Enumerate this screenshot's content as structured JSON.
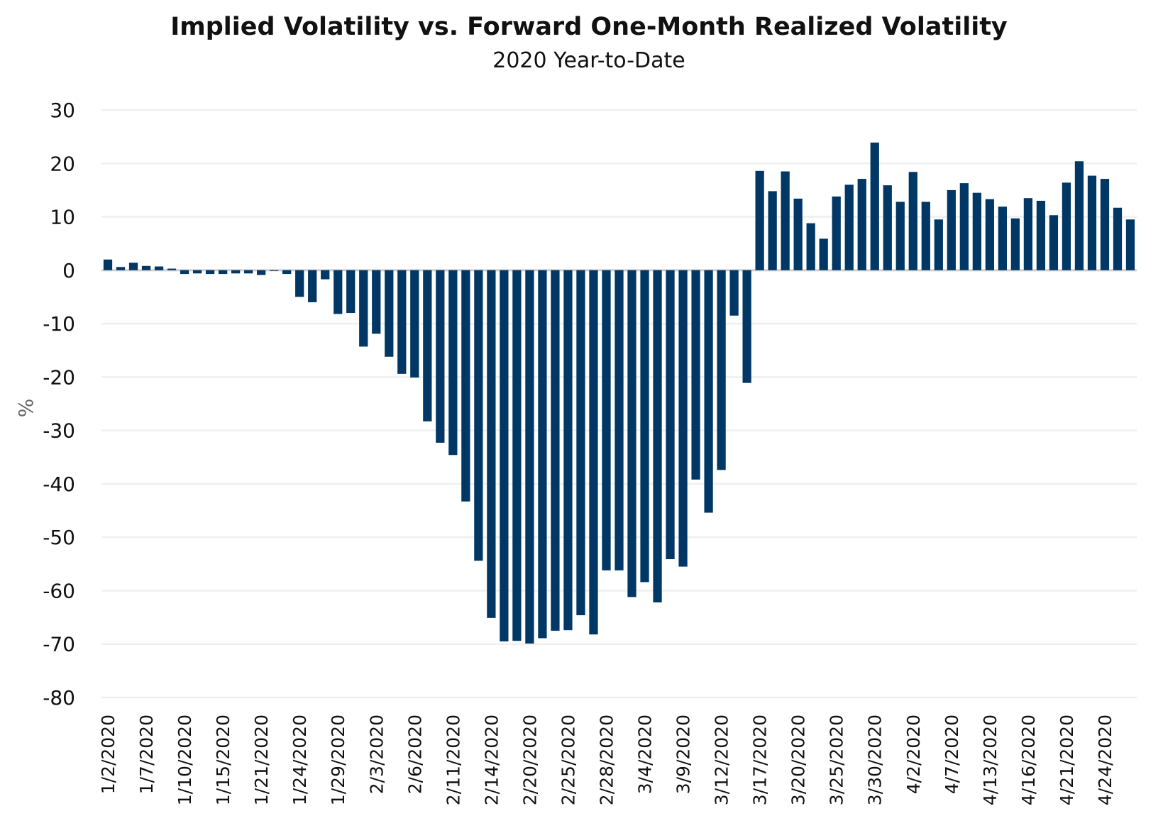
{
  "chart_data": {
    "type": "bar",
    "title": "Implied Volatility vs. Forward One-Month Realized Volatility",
    "subtitle": "2020 Year-to-Date",
    "xlabel": "",
    "ylabel": "%",
    "ylim": [
      -80,
      30
    ],
    "yticks": [
      30,
      20,
      10,
      0,
      -10,
      -20,
      -30,
      -40,
      -50,
      -60,
      -70,
      -80
    ],
    "grid": true,
    "bar_color": "#003764",
    "categories": [
      "1/2/2020",
      "1/3/2020",
      "1/6/2020",
      "1/7/2020",
      "1/8/2020",
      "1/9/2020",
      "1/10/2020",
      "1/13/2020",
      "1/14/2020",
      "1/15/2020",
      "1/16/2020",
      "1/17/2020",
      "1/21/2020",
      "1/22/2020",
      "1/23/2020",
      "1/24/2020",
      "1/27/2020",
      "1/28/2020",
      "1/29/2020",
      "1/30/2020",
      "1/31/2020",
      "2/3/2020",
      "2/4/2020",
      "2/5/2020",
      "2/6/2020",
      "2/7/2020",
      "2/10/2020",
      "2/11/2020",
      "2/12/2020",
      "2/13/2020",
      "2/14/2020",
      "2/18/2020",
      "2/19/2020",
      "2/20/2020",
      "2/21/2020",
      "2/24/2020",
      "2/25/2020",
      "2/26/2020",
      "2/27/2020",
      "2/28/2020",
      "3/2/2020",
      "3/3/2020",
      "3/4/2020",
      "3/5/2020",
      "3/6/2020",
      "3/9/2020",
      "3/10/2020",
      "3/11/2020",
      "3/12/2020",
      "3/13/2020",
      "3/16/2020",
      "3/17/2020",
      "3/18/2020",
      "3/19/2020",
      "3/20/2020",
      "3/23/2020",
      "3/24/2020",
      "3/25/2020",
      "3/26/2020",
      "3/27/2020",
      "3/30/2020",
      "3/31/2020",
      "4/1/2020",
      "4/2/2020",
      "4/3/2020",
      "4/6/2020",
      "4/7/2020",
      "4/8/2020",
      "4/9/2020",
      "4/13/2020",
      "4/14/2020",
      "4/15/2020",
      "4/16/2020",
      "4/17/2020",
      "4/20/2020",
      "4/21/2020",
      "4/22/2020",
      "4/23/2020",
      "4/24/2020",
      "4/27/2020",
      "4/28/2020"
    ],
    "tick_labels": [
      "1/2/2020",
      "1/7/2020",
      "1/10/2020",
      "1/15/2020",
      "1/21/2020",
      "1/24/2020",
      "1/29/2020",
      "2/3/2020",
      "2/6/2020",
      "2/11/2020",
      "2/14/2020",
      "2/20/2020",
      "2/25/2020",
      "2/28/2020",
      "3/4/2020",
      "3/9/2020",
      "3/12/2020",
      "3/17/2020",
      "3/20/2020",
      "3/25/2020",
      "3/30/2020",
      "4/2/2020",
      "4/7/2020",
      "4/13/2020",
      "4/16/2020",
      "4/21/2020",
      "4/24/2020"
    ],
    "values": [
      2.0,
      0.6,
      1.4,
      0.8,
      0.7,
      0.3,
      -0.7,
      -0.6,
      -0.7,
      -0.7,
      -0.6,
      -0.6,
      -0.9,
      -0.1,
      -0.7,
      -5.0,
      -6.0,
      -1.7,
      -8.2,
      -8.0,
      -14.3,
      -11.9,
      -16.2,
      -19.4,
      -20.1,
      -28.3,
      -32.3,
      -34.6,
      -43.3,
      -54.4,
      -65.1,
      -69.5,
      -69.4,
      -69.9,
      -68.9,
      -67.5,
      -67.4,
      -64.6,
      -68.2,
      -56.2,
      -56.2,
      -61.2,
      -58.4,
      -62.2,
      -54.1,
      -55.5,
      -39.2,
      -45.4,
      -37.4,
      -8.5,
      -21.1,
      18.6,
      14.8,
      18.5,
      13.4,
      8.8,
      5.9,
      13.8,
      16.0,
      17.1,
      23.9,
      15.9,
      12.8,
      18.4,
      12.8,
      9.5,
      15.0,
      16.3,
      14.5,
      13.3,
      11.9,
      9.7,
      13.5,
      13.0,
      10.3,
      16.4,
      20.4,
      17.7,
      17.1,
      11.7,
      9.5
    ]
  }
}
